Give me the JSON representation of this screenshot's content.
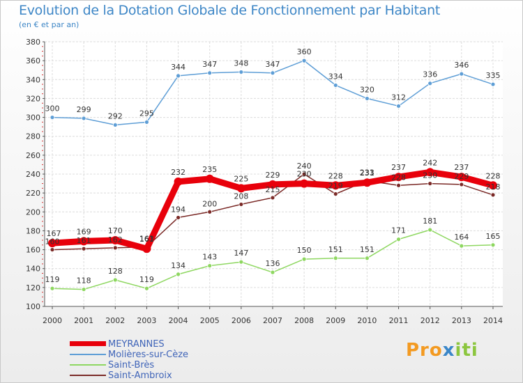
{
  "title": "Evolution de la Dotation Globale de Fonctionnement par Habitant",
  "subtitle": "(en € et par an)",
  "brand": {
    "parts": [
      "Pro",
      "x",
      "iti"
    ]
  },
  "chart_data": {
    "type": "line",
    "title": "Evolution de la Dotation Globale de Fonctionnement par Habitant",
    "subtitle": "(en € et par an)",
    "xlabel": "",
    "ylabel": "",
    "ylim": [
      100,
      380
    ],
    "yticks": [
      100,
      120,
      140,
      160,
      180,
      200,
      220,
      240,
      260,
      280,
      300,
      320,
      340,
      360,
      380
    ],
    "grid": true,
    "legend_position": "bottom-left",
    "x": [
      "2000",
      "2001",
      "2002",
      "2003",
      "2004",
      "2005",
      "2006",
      "2007",
      "2008",
      "2009",
      "2010",
      "2011",
      "2012",
      "2013",
      "2014"
    ],
    "series": [
      {
        "name": "MEYRANNES",
        "color": "#e8000b",
        "values": [
          167,
          169,
          170,
          161,
          232,
          235,
          225,
          229,
          230,
          228,
          231,
          237,
          242,
          237,
          228
        ],
        "labels": [
          "167",
          "169",
          "170",
          "161",
          "232",
          "235",
          "225",
          "229",
          "230",
          "228",
          "231",
          "237",
          "242",
          "237",
          "228"
        ]
      },
      {
        "name": "Molières-sur-Cèze",
        "color": "#5e9ed6",
        "values": [
          300,
          299,
          292,
          295,
          344,
          347,
          348,
          347,
          360,
          334,
          320,
          312,
          336,
          346,
          335
        ],
        "labels": [
          "300",
          "299",
          "292",
          "295",
          "344",
          "347",
          "348",
          "347",
          "360",
          "334",
          "320",
          "312",
          "336",
          "346",
          "335"
        ]
      },
      {
        "name": "Saint-Brès",
        "color": "#8ed760",
        "values": [
          119,
          118,
          128,
          119,
          134,
          143,
          147,
          136,
          150,
          151,
          151,
          171,
          181,
          164,
          165
        ],
        "labels": [
          "119",
          "118",
          "128",
          "119",
          "134",
          "143",
          "147",
          "136",
          "150",
          "151",
          "151",
          "171",
          "181",
          "164",
          "165"
        ]
      },
      {
        "name": "Saint-Ambroix",
        "color": "#7b2a27",
        "values": [
          160,
          161,
          162,
          163,
          194,
          200,
          208,
          215,
          240,
          219,
          233,
          228,
          230,
          229,
          218
        ],
        "labels": [
          "160",
          "161",
          "162",
          "163",
          "194",
          "200",
          "208",
          "215",
          "240",
          "219",
          "233",
          "228",
          "230",
          "229",
          "218"
        ]
      }
    ]
  }
}
